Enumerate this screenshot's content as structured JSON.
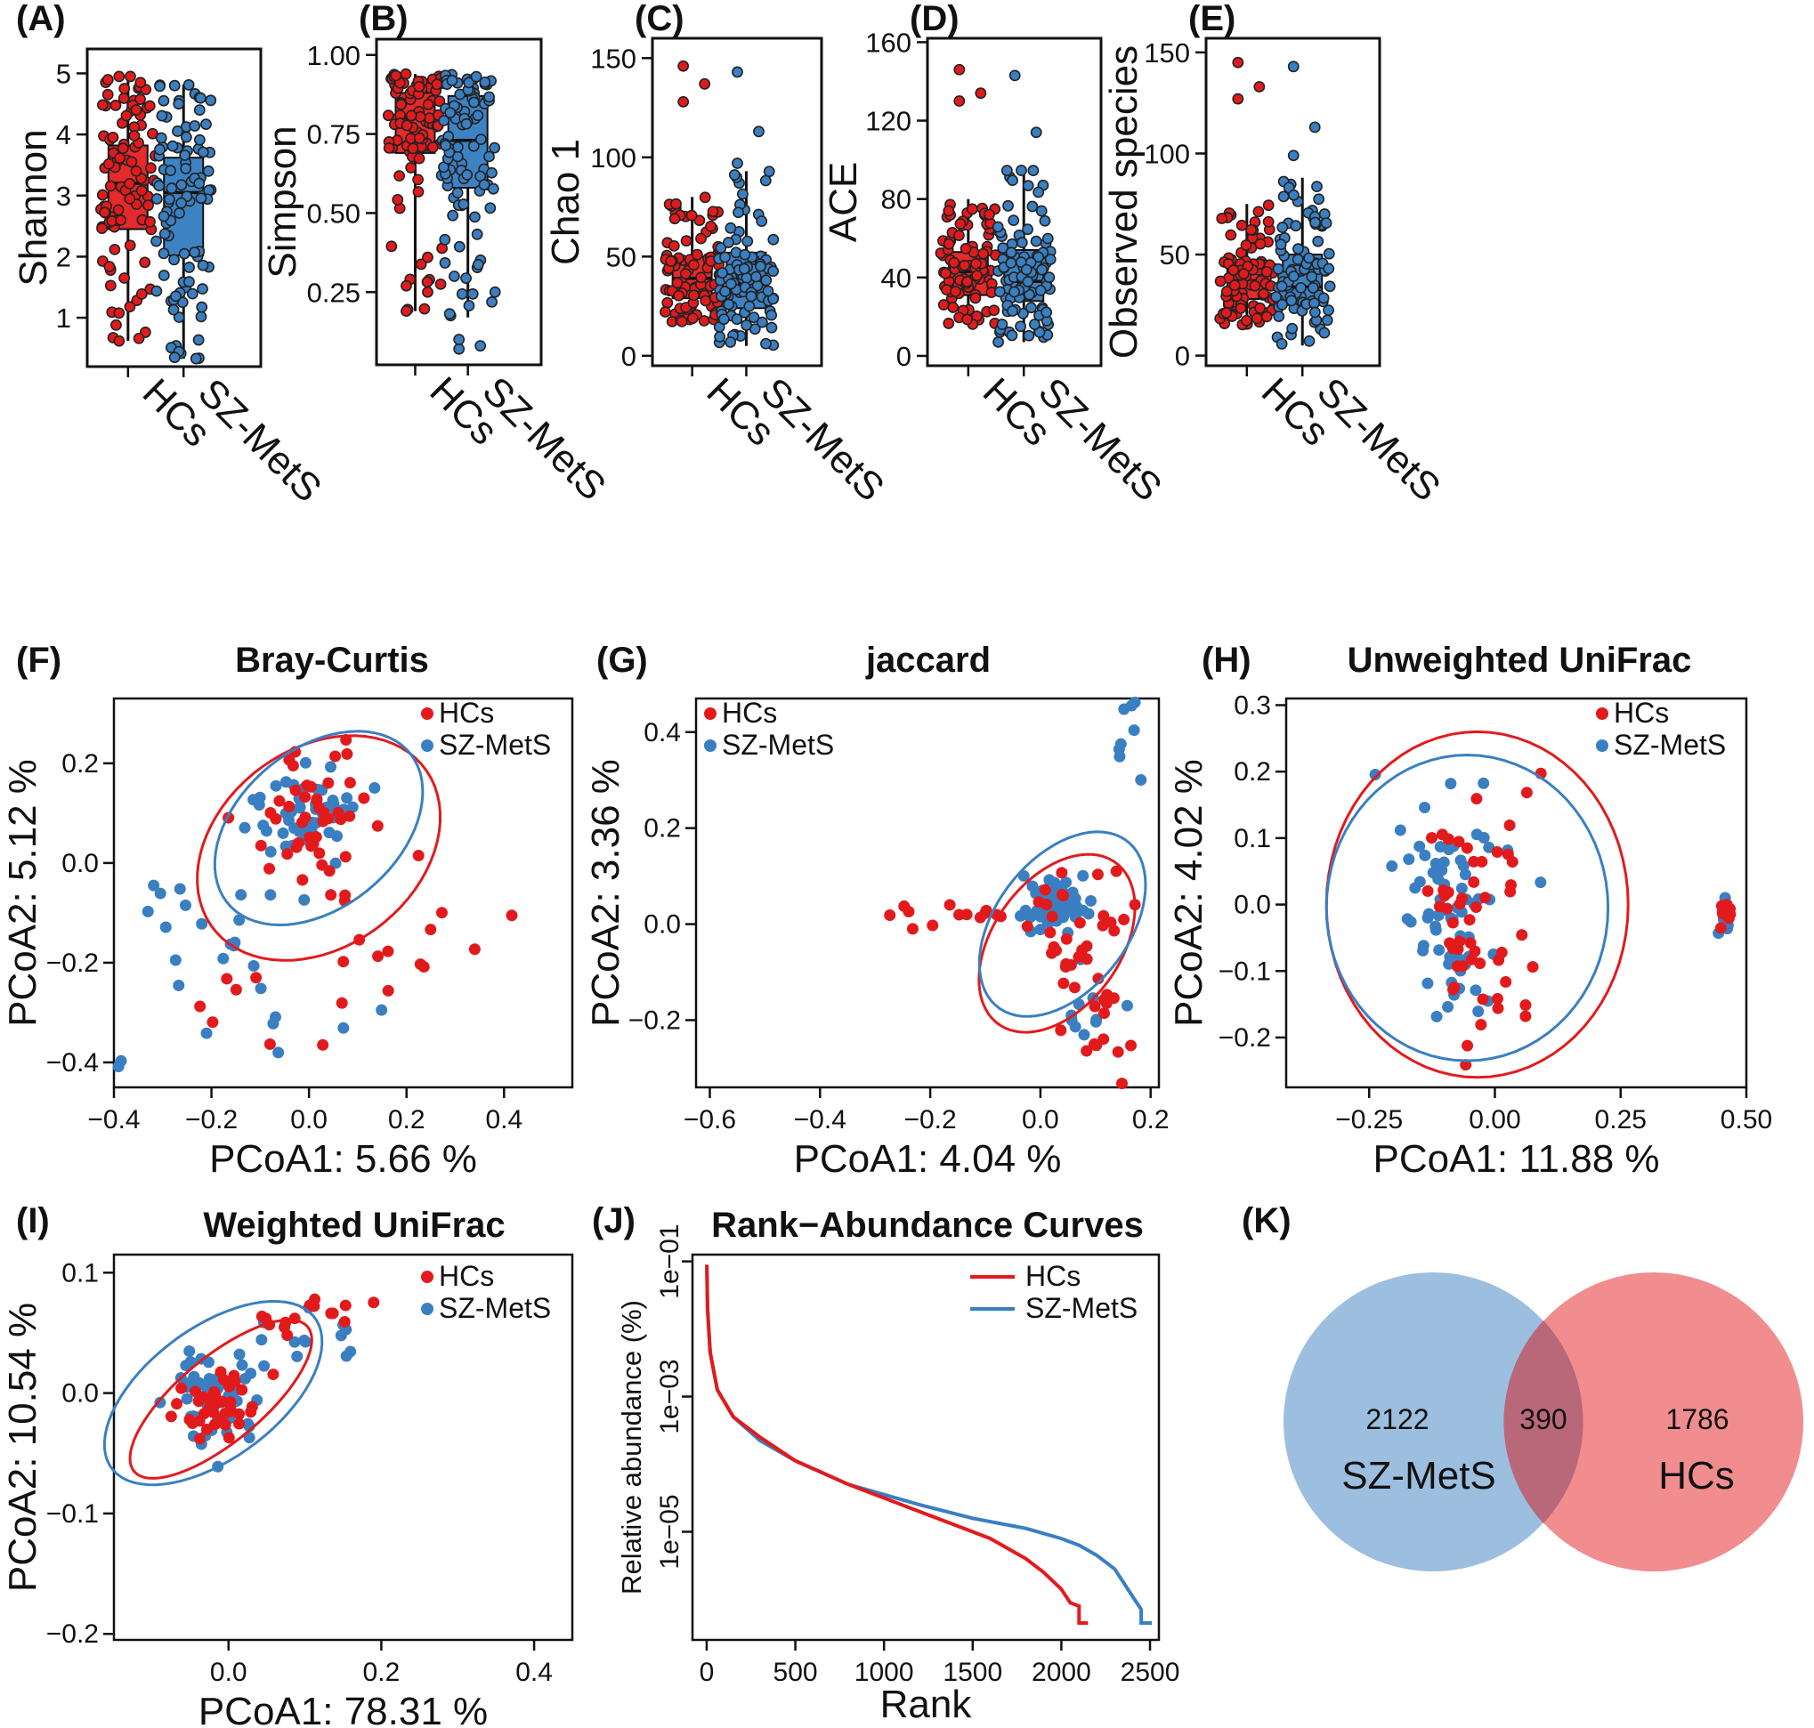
{
  "colors": {
    "hc": "#e31a1c",
    "sz": "#3a7fc1",
    "box_hc": "#e52a2a",
    "box_sz": "#3d83c4",
    "venn_sz": "#9cbedf",
    "venn_hc": "#ef7f83",
    "venn_overlap": "#b9687a"
  },
  "chart_data": [
    {
      "panel": "(A)",
      "type": "box",
      "ylabel": "Shannon",
      "categories": [
        "HCs",
        "SZ-MetS"
      ],
      "ylim": [
        0.2,
        5.4
      ],
      "yticks": [
        1,
        2,
        3,
        4,
        5
      ],
      "boxes": [
        {
          "group": "HCs",
          "whisker_low": 0.62,
          "q1": 2.45,
          "median": 3.2,
          "q3": 3.82,
          "whisker_high": 4.95
        },
        {
          "group": "SZ-MetS",
          "whisker_low": 0.33,
          "q1": 2.02,
          "median": 3.05,
          "q3": 3.62,
          "whisker_high": 4.82
        }
      ]
    },
    {
      "panel": "(B)",
      "type": "box",
      "ylabel": "Simpson",
      "categories": [
        "HCs",
        "SZ-MetS"
      ],
      "ylim": [
        0.02,
        1.05
      ],
      "yticks": [
        0.25,
        0.5,
        0.75,
        1.0
      ],
      "ytick_labels": [
        "0.25",
        "0.50",
        "0.75",
        "1.00"
      ],
      "boxes": [
        {
          "group": "HCs",
          "whisker_low": 0.19,
          "q1": 0.69,
          "median": 0.8,
          "q3": 0.88,
          "whisker_high": 0.94
        },
        {
          "group": "SZ-MetS",
          "whisker_low": 0.17,
          "q1": 0.58,
          "median": 0.73,
          "q3": 0.87,
          "whisker_high": 0.94
        }
      ]
    },
    {
      "panel": "(C)",
      "type": "box",
      "ylabel": "Chao 1",
      "categories": [
        "HCs",
        "SZ-MetS"
      ],
      "ylim": [
        -5,
        160
      ],
      "yticks": [
        0,
        50,
        100,
        150
      ],
      "boxes": [
        {
          "group": "HCs",
          "whisker_low": 17,
          "q1": 29,
          "median": 39,
          "q3": 50,
          "whisker_high": 80
        },
        {
          "group": "SZ-MetS",
          "whisker_low": 5,
          "q1": 24,
          "median": 36,
          "q3": 52,
          "whisker_high": 93
        }
      ]
    },
    {
      "panel": "(D)",
      "type": "box",
      "ylabel": "ACE",
      "categories": [
        "HCs",
        "SZ-MetS"
      ],
      "ylim": [
        -5,
        162
      ],
      "yticks": [
        0,
        40,
        80,
        120,
        160
      ],
      "boxes": [
        {
          "group": "HCs",
          "whisker_low": 16,
          "q1": 31,
          "median": 43,
          "q3": 53,
          "whisker_high": 80
        },
        {
          "group": "SZ-MetS",
          "whisker_low": 7,
          "q1": 28,
          "median": 38,
          "q3": 54,
          "whisker_high": 95
        }
      ]
    },
    {
      "panel": "(E)",
      "type": "box",
      "ylabel": "Observed species",
      "categories": [
        "HCs",
        "SZ-MetS"
      ],
      "ylim": [
        -5,
        157
      ],
      "yticks": [
        0,
        50,
        100,
        150
      ],
      "boxes": [
        {
          "group": "HCs",
          "whisker_low": 14,
          "q1": 28,
          "median": 37,
          "q3": 47,
          "whisker_high": 75
        },
        {
          "group": "SZ-MetS",
          "whisker_low": 5,
          "q1": 25,
          "median": 34,
          "q3": 50,
          "whisker_high": 88
        }
      ]
    },
    {
      "panel": "(F)",
      "type": "scatter",
      "title": "Bray-Curtis",
      "xlabel": "PCoA1:  5.66 %",
      "ylabel": "PCoA2:  5.12 %",
      "xlim": [
        -0.4,
        0.54
      ],
      "ylim": [
        -0.45,
        0.33
      ],
      "xticks": [
        -0.4,
        -0.2,
        0.0,
        0.2,
        0.4
      ],
      "yticks": [
        -0.4,
        -0.2,
        0.0,
        0.2
      ],
      "legend": [
        "HCs",
        "SZ-MetS"
      ],
      "ellipses": [
        {
          "group": "HCs",
          "cx": 0.02,
          "cy": 0.03,
          "rx": 0.27,
          "ry": 0.2,
          "angle_deg": 35
        },
        {
          "group": "SZ-MetS",
          "cx": 0.02,
          "cy": 0.07,
          "rx": 0.24,
          "ry": 0.16,
          "angle_deg": 38
        }
      ],
      "hc_clusters": [
        {
          "cx": 0.02,
          "cy": 0.1,
          "sx": 0.06,
          "sy": 0.07,
          "n": 45
        },
        {
          "cx": 0.28,
          "cy": -0.14,
          "sx": 0.1,
          "sy": 0.07,
          "n": 12
        },
        {
          "cx": -0.12,
          "cy": -0.27,
          "sx": 0.14,
          "sy": 0.05,
          "n": 10
        }
      ],
      "sz_clusters": [
        {
          "cx": 0.0,
          "cy": 0.1,
          "sx": 0.05,
          "sy": 0.05,
          "n": 50
        },
        {
          "cx": -0.18,
          "cy": -0.12,
          "sx": 0.08,
          "sy": 0.07,
          "n": 18
        },
        {
          "cx": 0.0,
          "cy": -0.37,
          "sx": 0.22,
          "sy": 0.05,
          "n": 8
        }
      ]
    },
    {
      "panel": "(G)",
      "type": "scatter",
      "title": "jaccard",
      "xlabel": "PCoA1:  4.04 %",
      "ylabel": "PCoA2:  3.36 %",
      "xlim": [
        -0.625,
        0.215
      ],
      "ylim": [
        -0.34,
        0.47
      ],
      "xticks": [
        -0.6,
        -0.4,
        -0.2,
        0.0,
        0.2
      ],
      "yticks": [
        -0.2,
        0.0,
        0.2,
        0.4
      ],
      "legend": [
        "HCs",
        "SZ-MetS"
      ],
      "ellipses": [
        {
          "group": "HCs",
          "cx": 0.03,
          "cy": -0.04,
          "rx": 0.2,
          "ry": 0.12,
          "angle_deg": 62
        },
        {
          "group": "SZ-MetS",
          "cx": 0.04,
          "cy": 0.0,
          "rx": 0.21,
          "ry": 0.125,
          "angle_deg": 60
        }
      ],
      "hc_clusters": [
        {
          "cx": 0.07,
          "cy": -0.04,
          "sx": 0.05,
          "sy": 0.08,
          "n": 40
        },
        {
          "cx": -0.18,
          "cy": 0.02,
          "sx": 0.06,
          "sy": 0.015,
          "n": 12
        },
        {
          "cx": 0.12,
          "cy": -0.25,
          "sx": 0.03,
          "sy": 0.05,
          "n": 8
        }
      ],
      "sz_clusters": [
        {
          "cx": 0.03,
          "cy": 0.04,
          "sx": 0.03,
          "sy": 0.03,
          "n": 60
        },
        {
          "cx": 0.17,
          "cy": 0.4,
          "sx": 0.02,
          "sy": 0.04,
          "n": 8
        },
        {
          "cx": 0.1,
          "cy": -0.15,
          "sx": 0.04,
          "sy": 0.06,
          "n": 10
        }
      ]
    },
    {
      "panel": "(H)",
      "type": "scatter",
      "title": "Unweighted UniFrac",
      "xlabel": "PCoA1:  11.88 %",
      "ylabel": "PCoA2:  4.02 %",
      "xlim": [
        -0.415,
        0.5
      ],
      "ylim": [
        -0.275,
        0.31
      ],
      "xticks": [
        -0.25,
        0.0,
        0.25,
        0.5
      ],
      "xtick_labels": [
        "−0.25",
        "0.00",
        "0.25",
        "0.50"
      ],
      "yticks": [
        -0.2,
        -0.1,
        0.0,
        0.1,
        0.2,
        0.3
      ],
      "legend": [
        "HCs",
        "SZ-MetS"
      ],
      "ellipses": [
        {
          "group": "HCs",
          "cx": -0.035,
          "cy": 0.0,
          "rx": 0.3,
          "ry": 0.26,
          "angle_deg": 0
        },
        {
          "group": "SZ-MetS",
          "cx": -0.055,
          "cy": -0.005,
          "rx": 0.28,
          "ry": 0.23,
          "angle_deg": 0
        }
      ],
      "hc_clusters": [
        {
          "cx": -0.05,
          "cy": 0.0,
          "sx": 0.06,
          "sy": 0.1,
          "n": 55
        },
        {
          "cx": 0.46,
          "cy": -0.015,
          "sx": 0.006,
          "sy": 0.012,
          "n": 10
        }
      ],
      "sz_clusters": [
        {
          "cx": -0.08,
          "cy": 0.01,
          "sx": 0.06,
          "sy": 0.09,
          "n": 70
        },
        {
          "cx": 0.46,
          "cy": -0.02,
          "sx": 0.006,
          "sy": 0.012,
          "n": 8
        }
      ]
    },
    {
      "panel": "(I)",
      "type": "scatter",
      "title": "Weighted UniFrac",
      "xlabel": "PCoA1:  78.31 %",
      "ylabel": "PCoA2:  10.54 %",
      "xlim": [
        -0.15,
        0.45
      ],
      "ylim": [
        -0.205,
        0.115
      ],
      "xticks": [
        0.0,
        0.2,
        0.4
      ],
      "yticks": [
        -0.2,
        -0.1,
        0.0,
        0.1
      ],
      "legend": [
        "HCs",
        "SZ-MetS"
      ],
      "ellipses": [
        {
          "group": "HCs",
          "cx": -0.01,
          "cy": -0.005,
          "rx": 0.13,
          "ry": 0.04,
          "angle_deg": 25
        },
        {
          "group": "SZ-MetS",
          "cx": -0.02,
          "cy": 0.0,
          "rx": 0.15,
          "ry": 0.06,
          "angle_deg": 20
        }
      ],
      "hc_clusters": [
        {
          "cx": -0.02,
          "cy": -0.01,
          "sx": 0.025,
          "sy": 0.015,
          "n": 40
        },
        {
          "cx": 0.12,
          "cy": 0.06,
          "sx": 0.04,
          "sy": 0.012,
          "n": 15
        }
      ],
      "sz_clusters": [
        {
          "cx": -0.03,
          "cy": -0.005,
          "sx": 0.03,
          "sy": 0.02,
          "n": 55
        },
        {
          "cx": 0.1,
          "cy": 0.05,
          "sx": 0.05,
          "sy": 0.015,
          "n": 12
        }
      ]
    },
    {
      "panel": "(J)",
      "type": "line",
      "title": "Rank−Abundance Curves",
      "xlabel": "Rank",
      "ylabel": "Relative abundance (%)",
      "xlim": [
        -80,
        2550
      ],
      "ylog_range": [
        -6.6,
        -0.9
      ],
      "xticks": [
        0,
        500,
        1000,
        1500,
        2000,
        2500
      ],
      "yticks_log": [
        -5,
        -3,
        -1
      ],
      "ytick_labels": [
        "1e−05",
        "1e−03",
        "1e−01"
      ],
      "legend": [
        "HCs",
        "SZ-MetS"
      ],
      "series": [
        {
          "name": "HCs",
          "x": [
            1,
            5,
            20,
            60,
            150,
            300,
            500,
            800,
            1000,
            1200,
            1400,
            1600,
            1800,
            1900,
            2000,
            2050,
            2100,
            2100,
            2150
          ],
          "log10_y": [
            -1.05,
            -1.7,
            -2.35,
            -2.9,
            -3.3,
            -3.6,
            -3.95,
            -4.3,
            -4.5,
            -4.7,
            -4.9,
            -5.1,
            -5.4,
            -5.6,
            -5.85,
            -6.05,
            -6.1,
            -6.35,
            -6.35
          ]
        },
        {
          "name": "SZ-MetS",
          "x": [
            1,
            5,
            20,
            60,
            150,
            300,
            500,
            800,
            1000,
            1200,
            1500,
            1800,
            2000,
            2100,
            2200,
            2300,
            2350,
            2400,
            2450,
            2450,
            2510
          ],
          "log10_y": [
            -1.05,
            -1.7,
            -2.35,
            -2.9,
            -3.3,
            -3.65,
            -3.95,
            -4.3,
            -4.45,
            -4.6,
            -4.8,
            -4.95,
            -5.1,
            -5.2,
            -5.35,
            -5.55,
            -5.75,
            -5.95,
            -6.15,
            -6.35,
            -6.35
          ]
        }
      ]
    },
    {
      "panel": "(K)",
      "type": "venn",
      "sets": [
        {
          "name": "SZ-MetS",
          "only": "2122"
        },
        {
          "name": "HCs",
          "only": "1786"
        }
      ],
      "overlap": "390"
    }
  ]
}
